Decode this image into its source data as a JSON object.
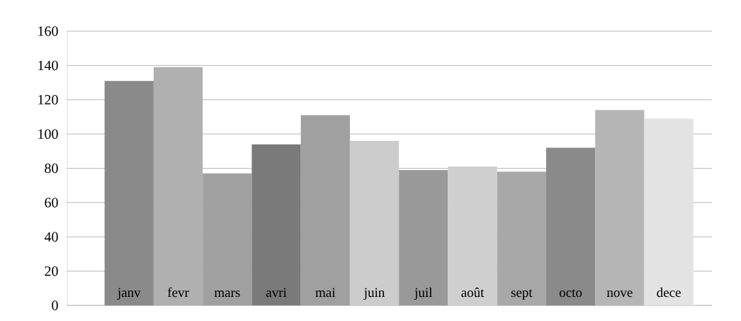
{
  "chart_data": {
    "type": "bar",
    "categories": [
      "janv",
      "fevr",
      "mars",
      "avri",
      "mai",
      "juin",
      "juil",
      "août",
      "sept",
      "octo",
      "nove",
      "dece"
    ],
    "values": [
      131,
      139,
      77,
      94,
      111,
      96,
      79,
      81,
      78,
      92,
      114,
      109
    ],
    "colors": [
      "#8a8a8a",
      "#b0b0b0",
      "#a0a0a0",
      "#7a7a7a",
      "#a0a0a0",
      "#cccccc",
      "#999999",
      "#cfcfcf",
      "#a8a8a8",
      "#8a8a8a",
      "#b5b5b5",
      "#e3e3e3"
    ],
    "ylim": [
      0,
      160
    ],
    "yticks": [
      0,
      20,
      40,
      60,
      80,
      100,
      120,
      140,
      160
    ],
    "grid": "y"
  }
}
